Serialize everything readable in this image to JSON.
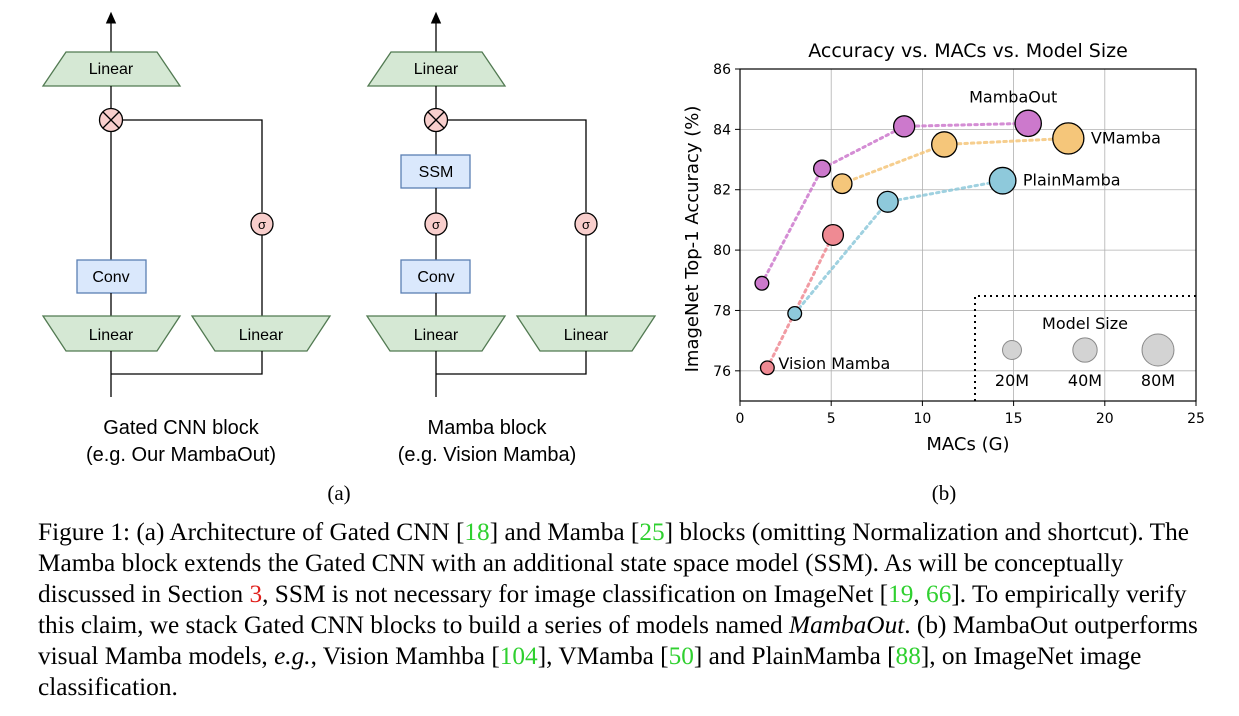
{
  "diagram_a": {
    "top_label": "Linear",
    "conv_label": "Conv",
    "left_linear": "Linear",
    "right_linear": "Linear",
    "sigma": "σ",
    "title": "Gated CNN block",
    "subtitle": "(e.g. Our MambaOut)",
    "panel_label": "(a)"
  },
  "diagram_b": {
    "top_label": "Linear",
    "ssm_label": "SSM",
    "conv_label": "Conv",
    "left_linear": "Linear",
    "right_linear": "Linear",
    "sigma": "σ",
    "title": "Mamba block",
    "subtitle": "(e.g. Vision Mamba)"
  },
  "panel_b_label": "(b)",
  "colors": {
    "linear_fill": "#d5e8d4",
    "linear_stroke": "#527a52",
    "conv_fill": "#dae8fc",
    "conv_stroke": "#5a7fb3",
    "sigma_fill": "#f8cecc",
    "multiply_fill": "#f8cecc",
    "mambaout": "#cc79cc",
    "vmamba": "#f5c67a",
    "plainmamba": "#8ec9db",
    "vision_mamba": "#ef8a93"
  },
  "chart_data": {
    "type": "scatter",
    "title": "Accuracy vs. MACs vs. Model Size",
    "xlabel": "MACs (G)",
    "ylabel": "ImageNet Top-1 Accuracy (%)",
    "xlim": [
      0,
      25
    ],
    "ylim": [
      75,
      86
    ],
    "xticks": [
      "0",
      "5",
      "10",
      "15",
      "20",
      "25"
    ],
    "yticks": [
      "76",
      "78",
      "80",
      "82",
      "84",
      "86"
    ],
    "grid": true,
    "series": [
      {
        "name": "MambaOut",
        "color": "#cc79cc",
        "label_at": "top",
        "points": [
          {
            "x": 1.2,
            "y": 78.9,
            "size": "7M"
          },
          {
            "x": 4.5,
            "y": 82.7,
            "size": "14M"
          },
          {
            "x": 9.0,
            "y": 84.1,
            "size": "27M"
          },
          {
            "x": 15.8,
            "y": 84.2,
            "size": "49M"
          }
        ]
      },
      {
        "name": "VMamba",
        "color": "#f5c67a",
        "label_at": "right",
        "points": [
          {
            "x": 5.6,
            "y": 82.2,
            "size": "22M"
          },
          {
            "x": 11.2,
            "y": 83.5,
            "size": "44M"
          },
          {
            "x": 18.0,
            "y": 83.7,
            "size": "75M"
          }
        ]
      },
      {
        "name": "PlainMamba",
        "color": "#8ec9db",
        "label_at": "right",
        "points": [
          {
            "x": 3.0,
            "y": 77.9,
            "size": "7M"
          },
          {
            "x": 8.1,
            "y": 81.6,
            "size": "26M"
          },
          {
            "x": 14.4,
            "y": 82.3,
            "size": "50M"
          }
        ]
      },
      {
        "name": "Vision Mamba",
        "color": "#ef8a93",
        "label_at": "right",
        "points": [
          {
            "x": 1.5,
            "y": 76.1,
            "size": "7M"
          },
          {
            "x": 5.1,
            "y": 80.5,
            "size": "26M"
          }
        ]
      }
    ],
    "size_legend": {
      "title": "Model Size",
      "items": [
        {
          "label": "20M",
          "size": "20M"
        },
        {
          "label": "40M",
          "size": "40M"
        },
        {
          "label": "80M",
          "size": "80M"
        }
      ]
    }
  },
  "caption": {
    "figure": "Figure 1:",
    "t1": " (a) Architecture of Gated CNN [",
    "r18": "18",
    "t2": "] and Mamba [",
    "r25": "25",
    "t3": "] blocks (omitting Normalization and shortcut). The Mamba block extends the Gated CNN with an additional state space model (SSM). As will be conceptually discussed in Section ",
    "r3": "3",
    "t4": ", SSM is not necessary for image classification on ImageNet [",
    "r19": "19",
    "t5": ", ",
    "r66": "66",
    "t6": "]. To empirically verify this claim, we stack Gated CNN blocks to build a series of models named ",
    "em1": "MambaOut",
    "t7": ". (b) MambaOut outperforms visual Mamba models, ",
    "em2": "e.g.",
    "t8": ", Vision Mamhba [",
    "r104": "104",
    "t9": "], VMamba [",
    "r50": "50",
    "t10": "] and PlainMamba [",
    "r88": "88",
    "t11": "], on ImageNet image classification."
  }
}
